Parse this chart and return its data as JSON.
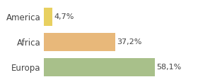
{
  "categories": [
    "Europa",
    "Africa",
    "America"
  ],
  "values": [
    58.1,
    37.2,
    4.7
  ],
  "labels": [
    "58,1%",
    "37,2%",
    "4,7%"
  ],
  "bar_colors": [
    "#a8c08a",
    "#e8b87a",
    "#e8d060"
  ],
  "background_color": "#ffffff",
  "xlim": [
    0,
    68
  ],
  "bar_height": 0.72,
  "label_fontsize": 8,
  "tick_fontsize": 8.5
}
